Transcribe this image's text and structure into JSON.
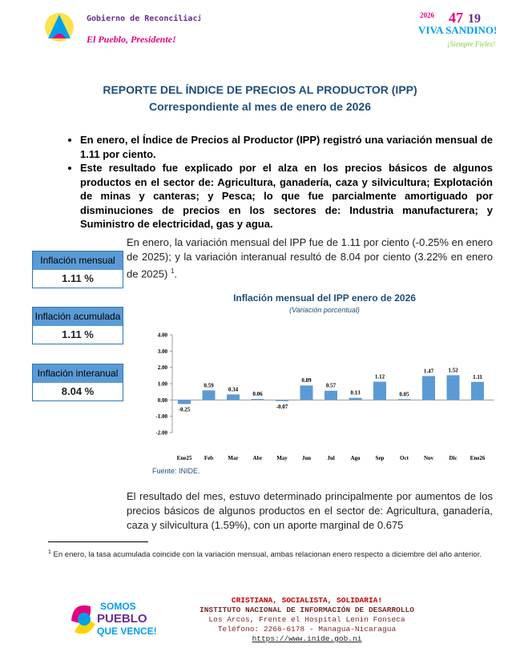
{
  "header": {
    "gov_name": "Gobierno de Reconciliación y Unidad Nacional",
    "gov_slogan": "El Pueblo, Presidente!",
    "right_year": "2026",
    "right_n1": "47",
    "right_n2": "19",
    "right_slogan": "VIVA SANDINO!",
    "right_sub": "¡Siempre Fieles!"
  },
  "title": "REPORTE DEL ÍNDICE DE PRECIOS AL PRODUCTOR (IPP)",
  "subtitle": "Correspondiente al mes de enero de 2026",
  "bullets": [
    "En enero, el Índice de Precios al Productor (IPP) registró una variación mensual de 1.11 por ciento.",
    "Este resultado fue explicado por el alza en los precios básicos de algunos productos en el sector de: Agricultura, ganadería, caza y silvicultura; Explotación de minas y canteras; y Pesca; lo que fue parcialmente amortiguado por disminuciones de precios en los sectores de: Industria manufacturera; y Suministro de electricidad, gas y agua."
  ],
  "paragraph1": {
    "text": "En enero, la variación mensual del IPP fue de 1.11 por ciento (-0.25% en enero de 2025); y la variación interanual resultó de 8.04 por ciento (3.22% en enero de 2025)",
    "footnote_ref": "1",
    "end": "."
  },
  "boxes": [
    {
      "label": "Inflación mensual",
      "value": "1.11 %"
    },
    {
      "label": "Inflación acumulada",
      "value": "1.11 %"
    },
    {
      "label": "Inflación interanual",
      "value": "8.04 %"
    }
  ],
  "chart_data": {
    "type": "bar",
    "title": "Inflación mensual del IPP enero de 2026",
    "subtitle": "(Variación porcentual)",
    "source": "Fuente: INIDE.",
    "categories": [
      "Ene25",
      "Feb",
      "Mar",
      "Abr",
      "May",
      "Jun",
      "Jul",
      "Ago",
      "Sep",
      "Oct",
      "Nov",
      "Dic",
      "Ene26"
    ],
    "values": [
      -0.25,
      0.59,
      0.34,
      0.06,
      -0.07,
      0.89,
      0.57,
      0.13,
      1.12,
      0.05,
      1.47,
      1.52,
      1.11
    ],
    "color": "#5b9bd5",
    "ylim": [
      -2,
      4
    ],
    "yticks": [
      {
        "value": -2,
        "label": "-2.00"
      },
      {
        "value": -1,
        "label": "-1.00"
      },
      {
        "value": 0,
        "label": "0.00"
      },
      {
        "value": 1,
        "label": "1.00"
      },
      {
        "value": 2,
        "label": "2.00"
      },
      {
        "value": 3,
        "label": "3.00"
      },
      {
        "value": 4,
        "label": "4.00"
      }
    ],
    "grid": false
  },
  "paragraph2": "El resultado del mes, estuvo determinado principalmente por aumentos de los precios básicos de algunos productos en el sector de: Agricultura, ganadería, caza y silvicultura (1.59%), con un aporte marginal de 0.675",
  "footnote": {
    "mark": "1",
    "text": "En enero, la tasa acumulada coincide con la variación mensual, ambas relacionan enero respecto a diciembre del año anterior."
  },
  "footer": {
    "logo": [
      "SOMOS",
      "PUEBLO",
      "QUE VENCE!"
    ],
    "lines": [
      "CRISTIANA, SOCIALISTA, SOLIDARIA!",
      "INSTITUTO NACIONAL DE INFORMACIÓN DE DESARROLLO",
      "Los Arcos, Frente el Hospital Lenin Fonseca",
      "Teléfono: 2266-6178 - Managua-Nicaragua",
      "https://www.inide.gob.ni"
    ]
  }
}
